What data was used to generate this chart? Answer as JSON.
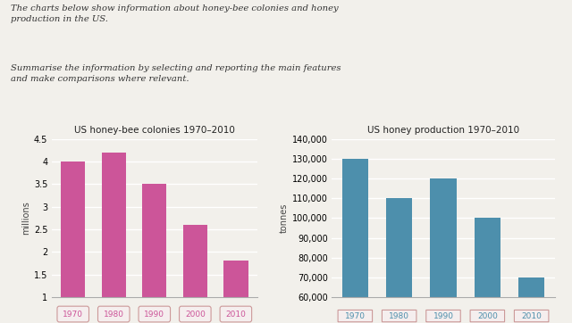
{
  "title_text1": "The charts below show information about honey-bee colonies and honey\nproduction in the US.",
  "title_text2": "Summarise the information by selecting and reporting the main features\nand make comparisons where relevant.",
  "chart1_title": "US honey-bee colonies 1970–2010",
  "chart2_title": "US honey production 1970–2010",
  "categories": [
    "1970",
    "1980",
    "1990",
    "2000",
    "2010"
  ],
  "colonies_values": [
    4.0,
    4.2,
    3.5,
    2.6,
    1.8
  ],
  "production_values": [
    130000,
    110000,
    120000,
    100000,
    70000
  ],
  "colonies_color": "#cc5599",
  "production_color": "#4d8fac",
  "colonies_ylabel": "millions",
  "production_ylabel": "tonnes",
  "colonies_ylim": [
    1,
    4.5
  ],
  "colonies_yticks": [
    1,
    1.5,
    2,
    2.5,
    3,
    3.5,
    4,
    4.5
  ],
  "production_ylim": [
    60000,
    140000
  ],
  "production_yticks": [
    60000,
    70000,
    80000,
    90000,
    100000,
    110000,
    120000,
    130000,
    140000
  ],
  "background_color": "#f2f0eb",
  "tick_box_color": "#f5eeee",
  "tick_box_edge_color": "#cc9999"
}
